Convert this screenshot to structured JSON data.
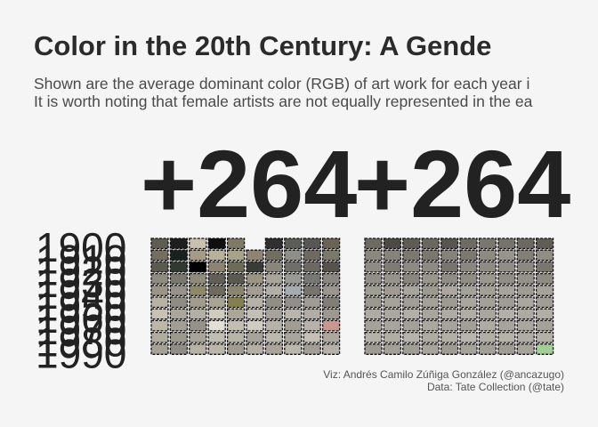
{
  "header": {
    "title": "Color in the 20th Century: A Gende",
    "subtitle_lines": [
      "Shown are the average dominant color (RGB) of art work for each year i",
      "It is worth noting that female artists are not equally represented in the ea"
    ]
  },
  "footer": {
    "viz_credit": "Viz: Andrés Camilo Zúñiga González (@ancazugo)",
    "data_credit": "Data: Tate Collection (@tate)"
  },
  "chart_data": {
    "type": "heatmap",
    "panel_headers": [
      "+264",
      "+264"
    ],
    "decade_labels": [
      "1900",
      "1910",
      "1920",
      "1930",
      "1940",
      "1950",
      "1960",
      "1970",
      "1980",
      "1990"
    ],
    "rows": 10,
    "cols": 10,
    "panels": [
      {
        "colors": [
          [
            "#5f5c52",
            "#1e1e1e",
            "#c9c1b0",
            "#0e0e0e",
            "#7e7a66",
            null,
            "#2f2f2f",
            "#5c5c58",
            "#595753",
            "#6a6457"
          ],
          [
            "#736e60",
            "#18221d",
            "#a49c88",
            "#b9b29a",
            "#a8a288",
            "#8d8572",
            "#716d60",
            "#8f8e88",
            "#6e6a60",
            "#7d786c"
          ],
          [
            "#5a5a4e",
            "#313a32",
            "#020202",
            "#8c8470",
            "#6d6a58",
            "#3a3a36",
            "#8a857a",
            "#706e68",
            "#6b6862",
            "#57534c"
          ],
          [
            "#8e8c80",
            "#7a786c",
            "#8e8a7c",
            "#625f56",
            "#5b5a50",
            "#9c9482",
            "#a8a49a",
            "#9a9a94",
            "#777773",
            "#8a8880"
          ],
          [
            "#9a9585",
            "#96928a",
            "#8d8a6a",
            "#6f6a5e",
            "#8a866e",
            "#a29e94",
            "#b2b0a6",
            "#a4acb0",
            "#777470",
            "#9a968e"
          ],
          [
            "#b6b2a4",
            "#8f8c84",
            "#a19c8c",
            "#a9a594",
            "#857f50",
            "#b6b2a8",
            "#918e86",
            "#928f88",
            "#a09c94",
            "#827d75"
          ],
          [
            "#c7c2b4",
            "#aaa69c",
            "#b2b0a4",
            "#cfcbbd",
            "#aba696",
            "#c2bfb4",
            "#a6a39c",
            "#b9b5ac",
            "#b2ada4",
            "#9e9990"
          ],
          [
            "#bdb7a9",
            "#a29e94",
            "#979288",
            "#e2dfd6",
            "#c2beb2",
            "#d0ccc2",
            "#b7b3a8",
            "#a29d93",
            "#b6b2a9",
            "#c89890"
          ],
          [
            "#b0aca0",
            "#9c988c",
            "#a9a49a",
            "#c0bdb2",
            "#b8b4a8",
            "#a7a39a",
            "#bcb8ae",
            "#a9a59c",
            "#c4c0b6",
            "#aca89f"
          ],
          [
            "#a5a196",
            "#8e8c84",
            "#b6b2a6",
            "#bab6aa",
            "#9f9b90",
            "#b3afa4",
            "#a8a49a",
            "#b9b6ac",
            "#a29e95",
            "#b5b1a8"
          ]
        ]
      },
      {
        "colors": [
          [
            "#6d6a62",
            "#4c4a44",
            "#5f5c56",
            "#6a675f",
            "#57554f",
            "#6e6b63",
            "#7a776f",
            "#76736b",
            "#6c6961",
            "#605d56"
          ],
          [
            "#8a877e",
            "#86837a",
            "#7b786f",
            "#7a776f",
            "#858279",
            "#7b7870",
            "#8d8a82",
            "#97948b",
            "#837f76",
            "#908d84"
          ],
          [
            "#8e8b82",
            "#7e7b72",
            "#8d8a81",
            "#8d8a82",
            "#77746c",
            "#8a877e",
            "#8e8b82",
            "#908d84",
            "#8b8880",
            "#79766e"
          ],
          [
            "#928f86",
            "#96938a",
            "#89867d",
            "#98958c",
            "#8f8c83",
            "#8f8c84",
            "#9a978e",
            "#908d85",
            "#959289",
            "#8e8b83"
          ],
          [
            "#a09d94",
            "#9e9b92",
            "#a8a59c",
            "#9c9990",
            "#aaa79e",
            "#a4a198",
            "#a29f96",
            "#a7a49b",
            "#9f9c93",
            "#a6a39a"
          ],
          [
            "#9b9890",
            "#a6a39a",
            "#a19e96",
            "#a4a198",
            "#9e9b92",
            "#a9a69d",
            "#a3a097",
            "#9f9c94",
            "#aaa79e",
            "#a09d95"
          ],
          [
            "#aeaba2",
            "#aaa79e",
            "#b2afa6",
            "#a8a59c",
            "#aeaba2",
            "#b0ada4",
            "#a9a69d",
            "#b3b0a7",
            "#acaaa1",
            "#b1aea5"
          ],
          [
            "#a5a299",
            "#a8a59c",
            "#a3a097",
            "#aaa79e",
            "#a6a39a",
            "#a29f96",
            "#aeaba2",
            "#a7a49b",
            "#a9a69d",
            "#a4a198"
          ],
          [
            "#b4b1a8",
            "#b0ada4",
            "#b6b3aa",
            "#aeaba2",
            "#b2afa6",
            "#b8b5ac",
            "#b1aea5",
            "#b5b2a9",
            "#afaca3",
            "#b3b0a7"
          ],
          [
            "#9d9a91",
            "#a3a097",
            "#a09d94",
            "#a7a49b",
            "#9e9b92",
            "#a5a299",
            "#a2a096",
            "#9f9c93",
            "#a6a39a",
            "#a1ce96"
          ]
        ]
      }
    ],
    "colors": {
      "background": "#f5f5f5",
      "text": "#222222",
      "tile_border": "#111111"
    }
  }
}
